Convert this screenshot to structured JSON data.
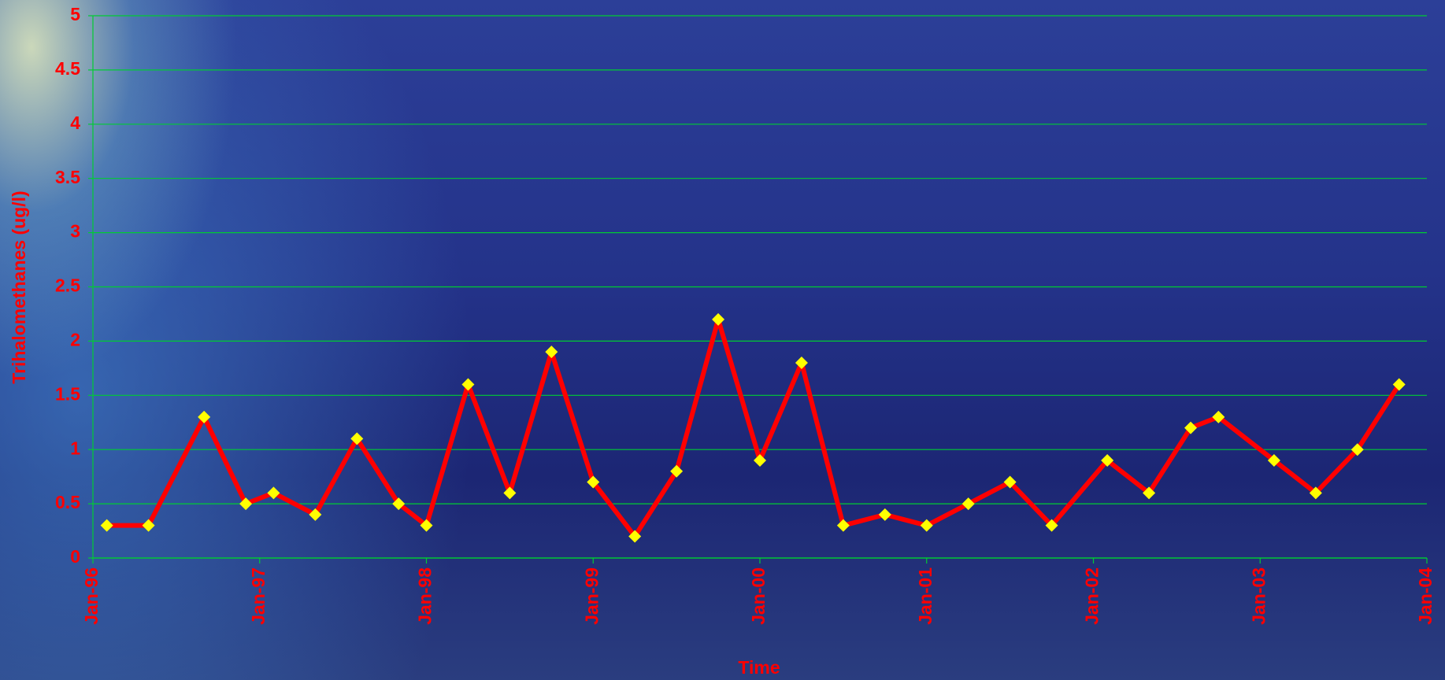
{
  "chart_data": {
    "type": "line",
    "x_label": "Time",
    "y_label": "Trihalomethanes (ug/l)",
    "x": [
      "Feb-96",
      "May-96",
      "Sep-96",
      "Dec-96",
      "Feb-97",
      "May-97",
      "Aug-97",
      "Nov-97",
      "Jan-98",
      "Apr-98",
      "Jul-98",
      "Oct-98",
      "Jan-99",
      "Apr-99",
      "Jul-99",
      "Oct-99",
      "Jan-00",
      "Apr-00",
      "Jul-00",
      "Oct-00",
      "Jan-01",
      "Apr-01",
      "Jul-01",
      "Oct-01",
      "Feb-02",
      "May-02",
      "Aug-02",
      "Oct-02",
      "Feb-03",
      "May-03",
      "Aug-03",
      "Nov-03"
    ],
    "series": [
      {
        "name": "Trihalomethanes",
        "color": "#ff0000",
        "marker_color": "#ffff00",
        "values": [
          0.3,
          0.3,
          1.3,
          0.5,
          0.6,
          0.4,
          1.1,
          0.5,
          0.3,
          1.6,
          0.6,
          1.9,
          0.7,
          0.2,
          0.8,
          2.2,
          0.9,
          1.8,
          0.3,
          0.4,
          0.3,
          0.5,
          0.7,
          0.3,
          0.9,
          0.6,
          1.2,
          1.3,
          0.9,
          0.6,
          1.0,
          1.6
        ]
      }
    ],
    "xlim": [
      "Jan-96",
      "Jan-04"
    ],
    "xticks": [
      "Jan-96",
      "Jan-97",
      "Jan-98",
      "Jan-99",
      "Jan-00",
      "Jan-01",
      "Jan-02",
      "Jan-03",
      "Jan-04"
    ],
    "ylim": [
      0,
      5
    ],
    "yticks": [
      0,
      0.5,
      1,
      1.5,
      2,
      2.5,
      3,
      3.5,
      4,
      4.5,
      5
    ],
    "grid": true,
    "grid_color": "#00cc33",
    "text_color": "#ff0000"
  }
}
